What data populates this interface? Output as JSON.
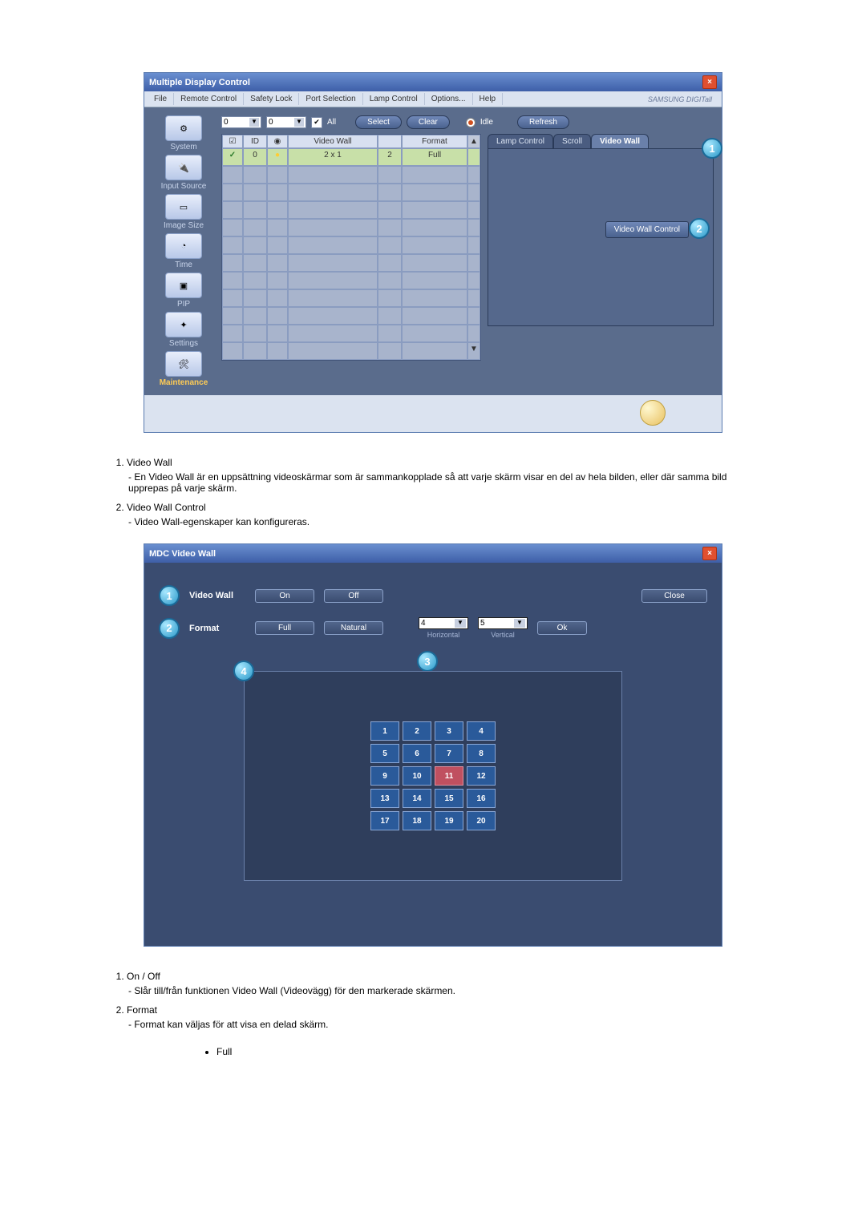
{
  "colors": {
    "window_gradient_top": "#6a8fd0",
    "window_gradient_bottom": "#3e5fa8",
    "work_bg": "#5a6c8c",
    "dlg_bg": "#3a4c70",
    "cell_bg": "#2a5a9a",
    "cell_hi": "#c05060",
    "bubble": "#2a98c8",
    "close_btn": "#e05030"
  },
  "mdc": {
    "title": "Multiple Display Control",
    "menus": [
      "File",
      "Remote Control",
      "Safety Lock",
      "Port Selection",
      "Lamp Control",
      "Options...",
      "Help"
    ],
    "brand": "SAMSUNG DIGITall",
    "sidebar": [
      {
        "label": "System"
      },
      {
        "label": "Input Source"
      },
      {
        "label": "Image Size"
      },
      {
        "label": "Time"
      },
      {
        "label": "PIP"
      },
      {
        "label": "Settings"
      },
      {
        "label": "Maintenance",
        "active": true
      }
    ],
    "toolbar": {
      "combo1": "0",
      "combo2": "0",
      "all_label": "All",
      "select": "Select",
      "clear": "Clear",
      "idle": "Idle",
      "refresh": "Refresh"
    },
    "grid": {
      "headers": {
        "id": "ID",
        "vw": "Video Wall",
        "fmt": "Format"
      },
      "rows": 11,
      "selected_row": {
        "id": "0",
        "vw": "2 x 1",
        "n": "2",
        "fmt": "Full"
      }
    },
    "tabs": [
      "Lamp Control",
      "Scroll",
      "Video Wall"
    ],
    "active_tab": 2,
    "vwc_button": "Video Wall Control",
    "callouts": {
      "1": "1",
      "2": "2"
    }
  },
  "notes1": {
    "items": [
      {
        "title": "Video Wall",
        "lines": [
          "En Video Wall är en uppsättning videoskärmar som är sammankopplade så att varje skärm visar en del av hela bilden, eller där samma bild upprepas på varje skärm."
        ]
      },
      {
        "title": "Video Wall Control",
        "lines": [
          "Video Wall-egenskaper kan konfigureras."
        ]
      }
    ]
  },
  "vw_dialog": {
    "title": "MDC Video Wall",
    "rows": [
      {
        "label": "Video Wall",
        "buttons": [
          "On",
          "Off"
        ]
      },
      {
        "label": "Format",
        "buttons": [
          "Full",
          "Natural"
        ]
      }
    ],
    "h_label": "Horizontal",
    "v_label": "Vertical",
    "h_value": "4",
    "v_value": "5",
    "close": "Close",
    "ok": "Ok",
    "callouts": {
      "1": "1",
      "2": "2",
      "3": "3",
      "4": "4"
    },
    "grid": {
      "cols": 4,
      "rows": 5,
      "highlight": 11
    }
  },
  "notes2": {
    "items": [
      {
        "title": "On / Off",
        "lines": [
          "Slår till/från funktionen Video Wall (Videovägg) för den markerade skärmen."
        ]
      },
      {
        "title": "Format",
        "lines": [
          "Format kan väljas för att visa en delad skärm."
        ]
      }
    ],
    "bullets": [
      "Full"
    ]
  }
}
